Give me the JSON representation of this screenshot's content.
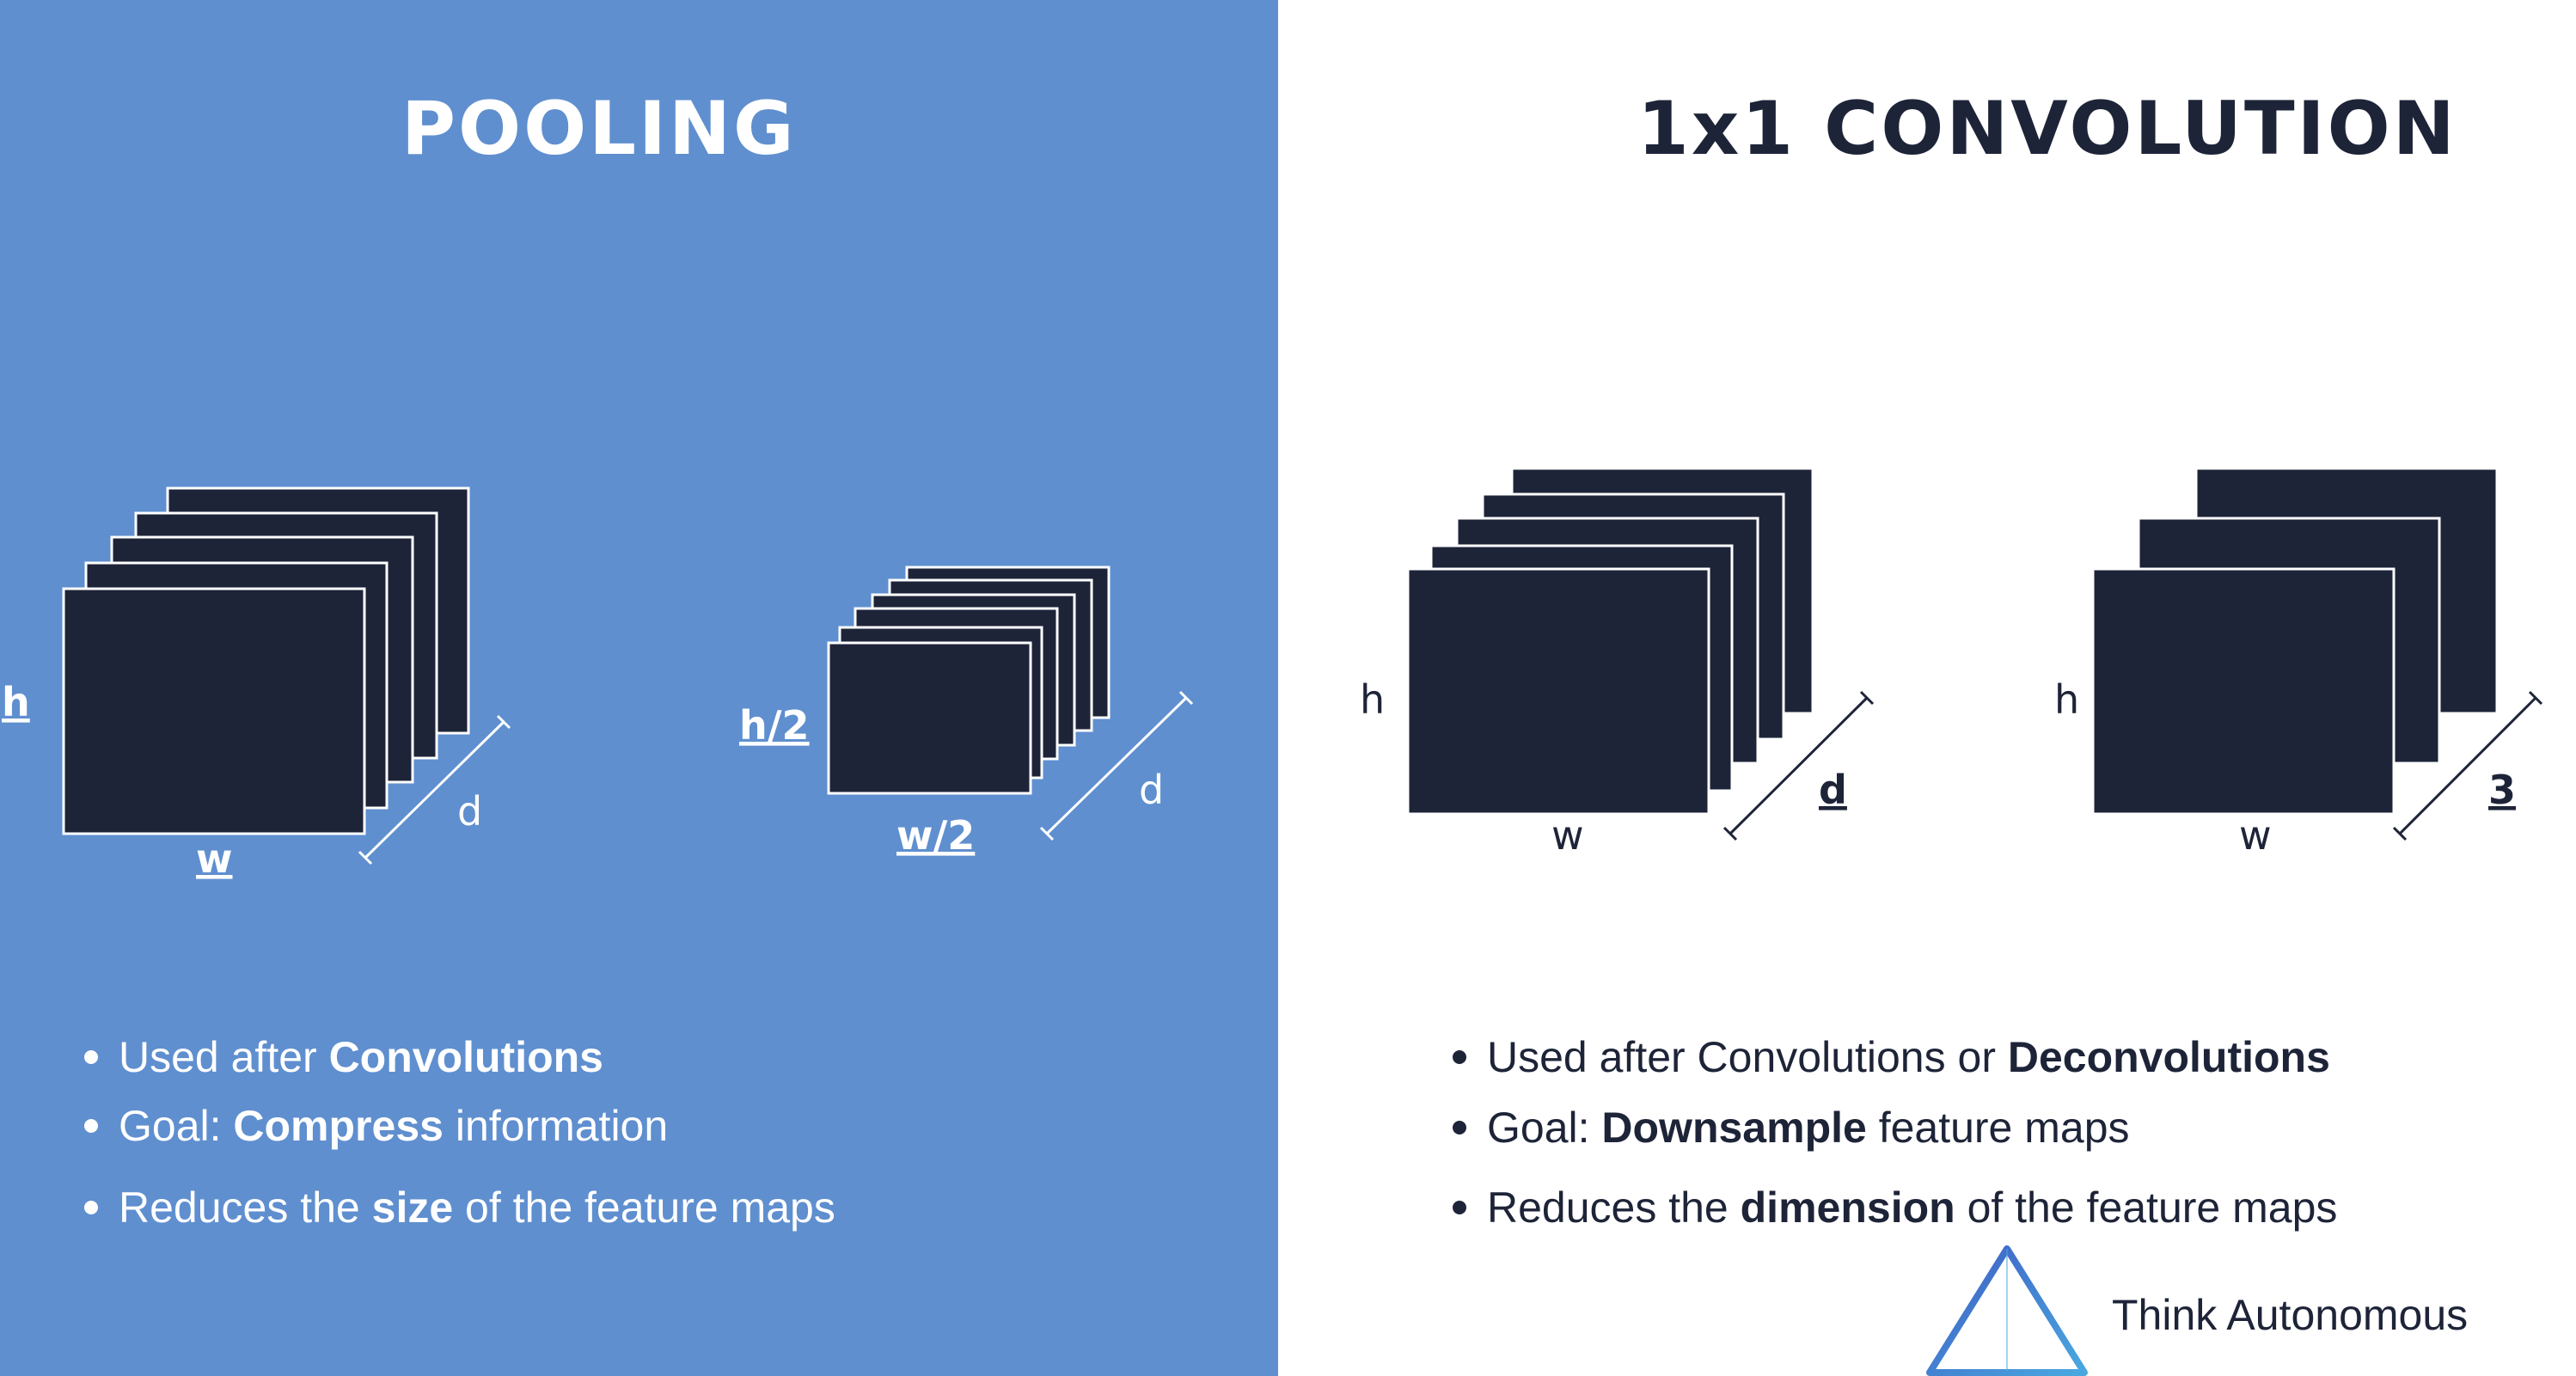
{
  "left": {
    "title": "POOLING",
    "labels": {
      "input_h": "h",
      "input_w": "w",
      "input_d": "d",
      "output_h": "h/2",
      "output_w": "w/2",
      "output_d": "d"
    },
    "bullets": [
      {
        "pre": "Used after ",
        "bold": "Convolutions",
        "post": ""
      },
      {
        "pre": "Goal: ",
        "bold": "Compress",
        "post": " information"
      },
      {
        "pre": "Reduces the ",
        "bold": "size",
        "post": " of the feature maps"
      }
    ]
  },
  "right": {
    "title": "1x1 CONVOLUTION",
    "labels": {
      "input_h": "h",
      "input_w": "w",
      "input_d": "d",
      "output_h": "h",
      "output_w": "w",
      "output_d": "3"
    },
    "bullets": [
      {
        "pre": "Used after Convolutions or ",
        "bold": "Deconvolutions",
        "post": ""
      },
      {
        "pre": "Goal: ",
        "bold": "Downsample",
        "post": " feature maps"
      },
      {
        "pre": "Reduces the ",
        "bold": "dimension",
        "post": " of the feature maps"
      }
    ]
  },
  "brand": {
    "name": "Think Autonomous",
    "logo_icon": "triangle-logo-icon"
  },
  "colors": {
    "left_background": "#5f8fcf",
    "map_fill": "#1e2438",
    "right_background": "#ffffff"
  }
}
